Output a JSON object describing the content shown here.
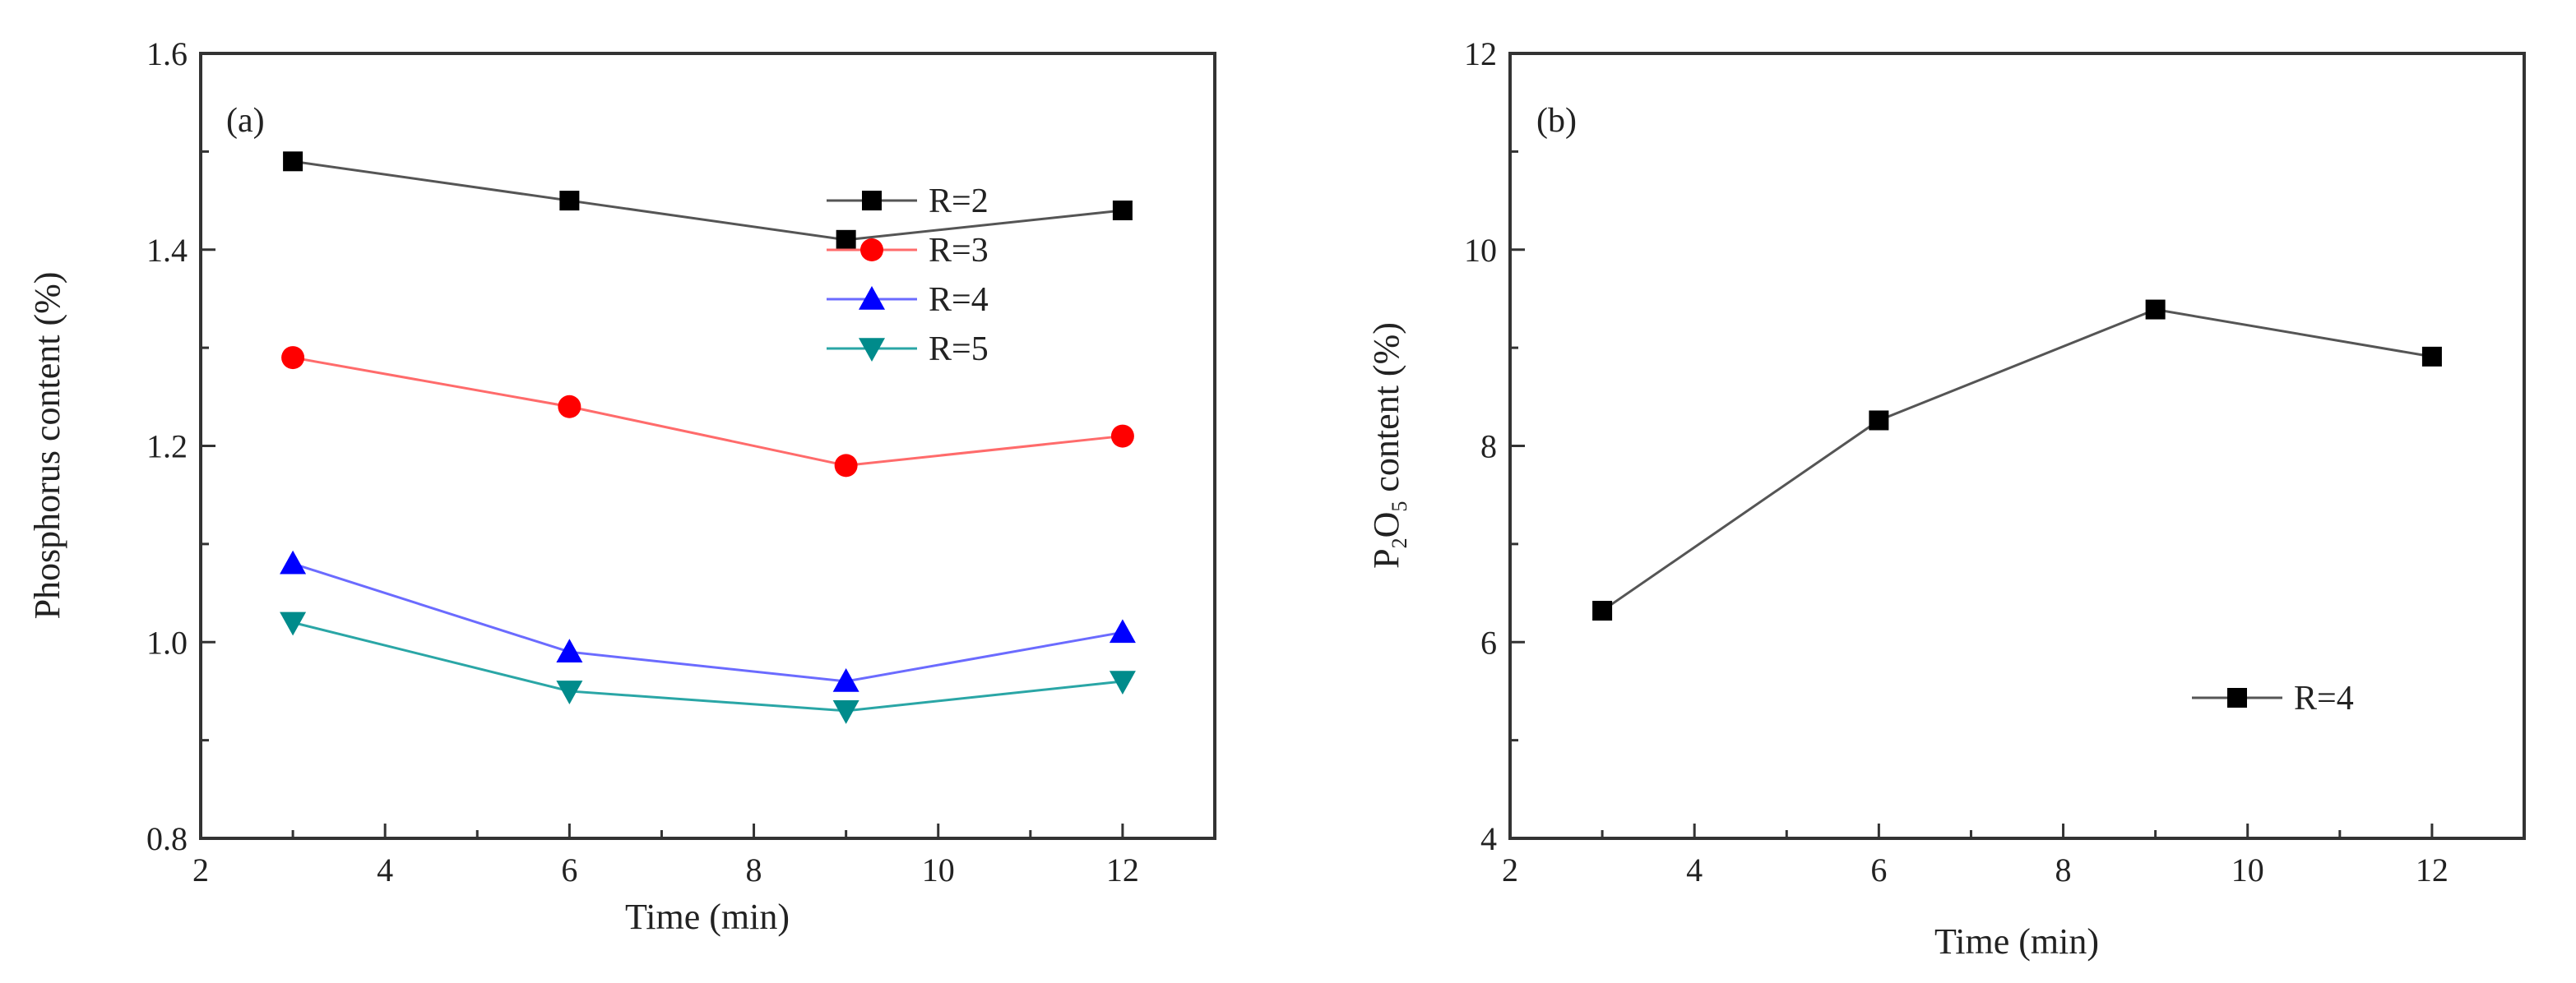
{
  "chart_data": [
    {
      "type": "line",
      "panel_label": "(a)",
      "xlabel": "Time (min)",
      "ylabel": "Phosphorus content (%)",
      "xlim": [
        2,
        13
      ],
      "ylim": [
        0.8,
        1.6
      ],
      "xticks": [
        2,
        4,
        6,
        8,
        10,
        12
      ],
      "yticks": [
        0.8,
        1.0,
        1.2,
        1.4,
        1.6
      ],
      "xtick_labels": [
        "2",
        "4",
        "6",
        "8",
        "10",
        "12"
      ],
      "ytick_labels": [
        "0.8",
        "1.0",
        "1.2",
        "1.4",
        "1.6"
      ],
      "legend_position": "right",
      "x": [
        3,
        6,
        9,
        12
      ],
      "series": [
        {
          "name": "R=2",
          "values": [
            1.49,
            1.45,
            1.41,
            1.44
          ],
          "line_color": "#555555",
          "marker_color": "#000000",
          "marker": "square"
        },
        {
          "name": "R=3",
          "values": [
            1.29,
            1.24,
            1.18,
            1.21
          ],
          "line_color": "#ff6b6b",
          "marker_color": "#ff0000",
          "marker": "circle"
        },
        {
          "name": "R=4",
          "values": [
            1.08,
            0.99,
            0.96,
            1.01
          ],
          "line_color": "#6b6bff",
          "marker_color": "#0000ff",
          "marker": "triangle-up"
        },
        {
          "name": "R=5",
          "values": [
            1.02,
            0.95,
            0.93,
            0.96
          ],
          "line_color": "#2aa6a6",
          "marker_color": "#008b8b",
          "marker": "triangle-down"
        }
      ]
    },
    {
      "type": "line",
      "panel_label": "(b)",
      "xlabel": "Time (min)",
      "ylabel_parts": [
        "P",
        "2",
        "O",
        "5",
        " content (%)"
      ],
      "xlim": [
        2,
        13
      ],
      "ylim": [
        4,
        12
      ],
      "xticks": [
        2,
        4,
        6,
        8,
        10,
        12
      ],
      "yticks": [
        4,
        6,
        8,
        10,
        12
      ],
      "xtick_labels": [
        "2",
        "4",
        "6",
        "8",
        "10",
        "12"
      ],
      "ytick_labels": [
        "4",
        "6",
        "8",
        "10",
        "12"
      ],
      "legend_position": "bottom-right",
      "x": [
        3,
        6,
        9,
        12
      ],
      "series": [
        {
          "name": "R=4",
          "values": [
            6.32,
            8.26,
            9.39,
            8.91
          ],
          "line_color": "#555555",
          "marker_color": "#000000",
          "marker": "square"
        }
      ]
    }
  ]
}
